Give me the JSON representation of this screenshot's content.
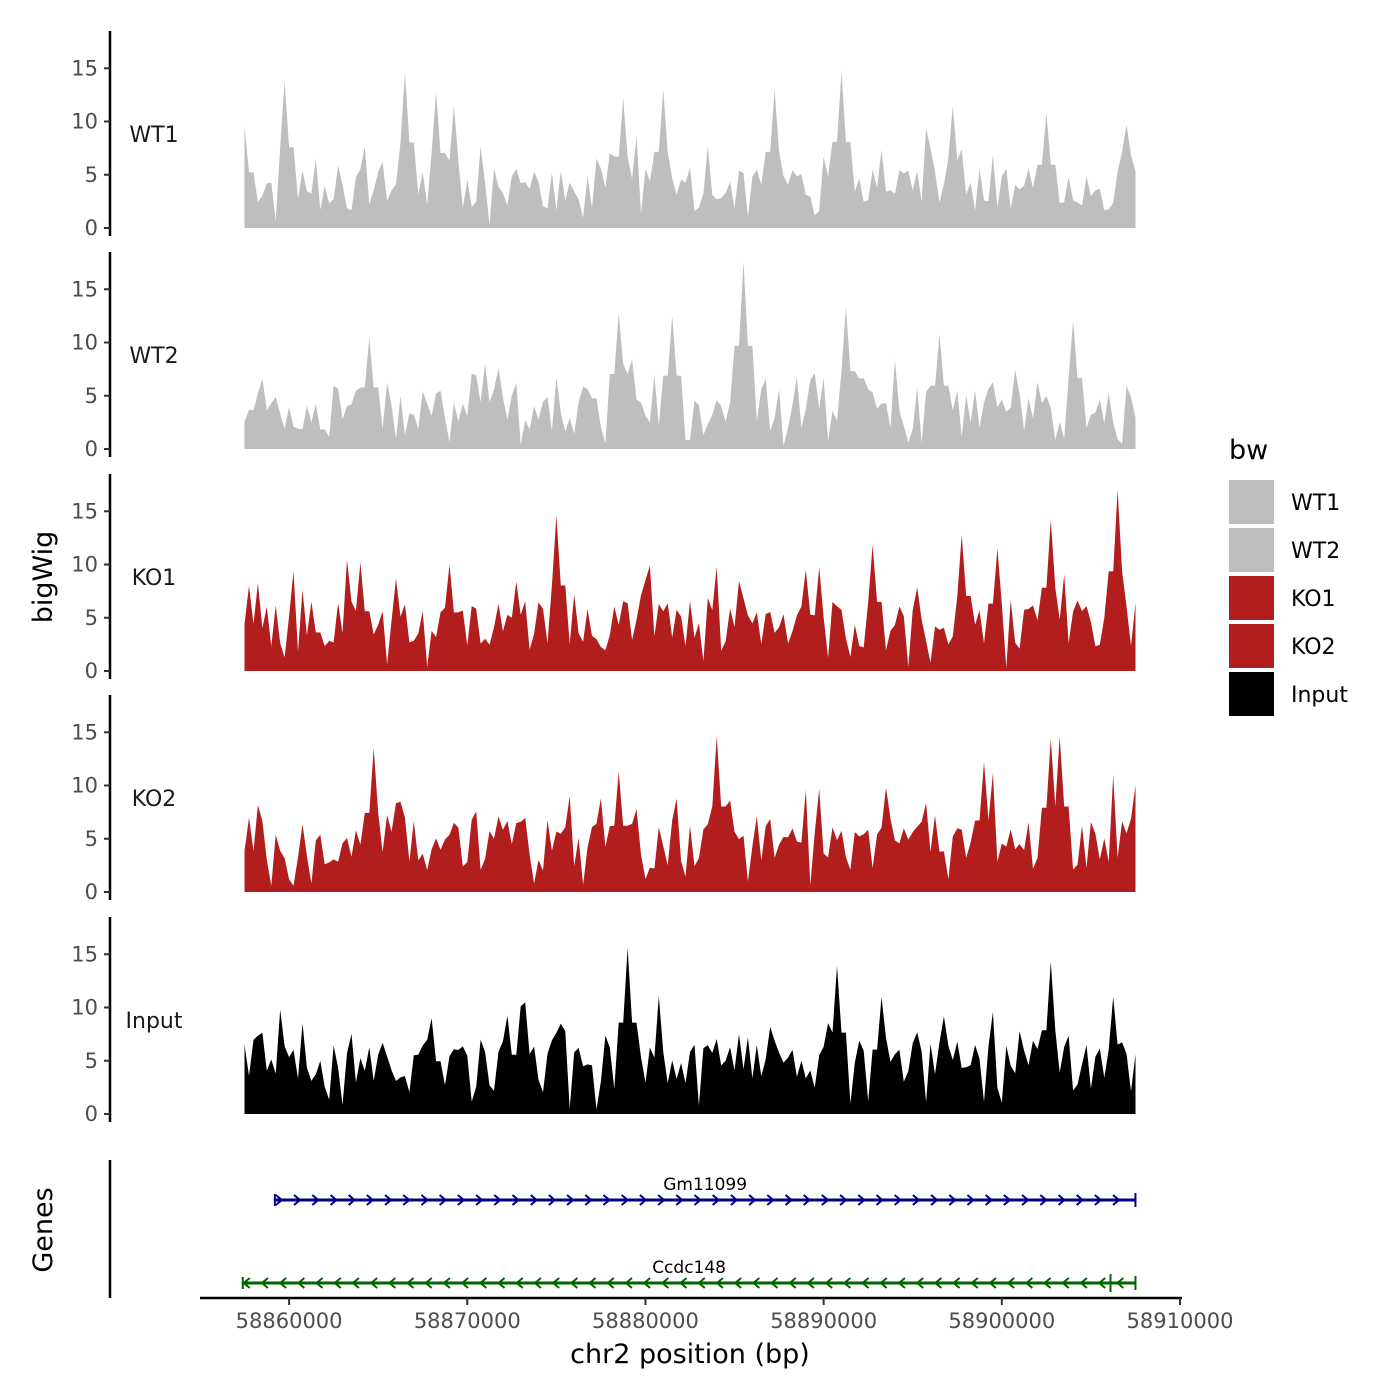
{
  "chart_data": {
    "type": "area",
    "description_free": true,
    "ylabel": "bigWig",
    "xlabel": "chr2 position (bp)",
    "xlim": [
      58855000,
      58910000
    ],
    "ylim": [
      0,
      18.5
    ],
    "y_ticks": [
      0,
      5,
      10,
      15
    ],
    "x_ticks": [
      58860000,
      58870000,
      58880000,
      58890000,
      58900000,
      58910000
    ],
    "x_tick_labels": [
      "58860000",
      "58870000",
      "58880000",
      "58890000",
      "58900000",
      "58910000"
    ],
    "data_range": [
      58857500,
      58907500
    ],
    "bin_size": 250,
    "series": [
      {
        "name": "WT1",
        "label": "WT1",
        "color": "#bebebe",
        "mean": 4.5,
        "seed": 11,
        "peaks": [
          [
            58857600,
            9.5
          ],
          [
            58859800,
            13.8
          ],
          [
            58866600,
            14.6
          ],
          [
            58868300,
            12.8
          ],
          [
            58869200,
            11.5
          ],
          [
            58878700,
            12.2
          ],
          [
            58880900,
            13.0
          ],
          [
            58891000,
            14.7
          ],
          [
            58887200,
            13.0
          ],
          [
            58897300,
            11.5
          ],
          [
            58902500,
            10.8
          ],
          [
            58907000,
            9.7
          ]
        ]
      },
      {
        "name": "WT2",
        "label": "WT2",
        "color": "#bebebe",
        "mean": 4.5,
        "seed": 23,
        "peaks": [
          [
            58885500,
            17.6
          ],
          [
            58881500,
            12.5
          ],
          [
            58878500,
            12.8
          ],
          [
            58891300,
            13.3
          ],
          [
            58904100,
            12.1
          ],
          [
            58896500,
            10.8
          ],
          [
            58871000,
            8.0
          ],
          [
            58864500,
            10.5
          ],
          [
            58858400,
            6.6
          ]
        ]
      },
      {
        "name": "KO1",
        "label": "KO1",
        "color": "#b21e1e",
        "mean": 5.3,
        "seed": 37,
        "peaks": [
          [
            58875100,
            14.6
          ],
          [
            58906400,
            17.0
          ],
          [
            58902700,
            14.2
          ],
          [
            58892800,
            11.8
          ],
          [
            58897800,
            12.8
          ],
          [
            58899700,
            11.5
          ],
          [
            58857800,
            8.0
          ],
          [
            58864000,
            10.2
          ],
          [
            58869000,
            10.0
          ],
          [
            58889000,
            9.5
          ]
        ]
      },
      {
        "name": "KO2",
        "label": "KO2",
        "color": "#b21e1e",
        "mean": 5.6,
        "seed": 53,
        "peaks": [
          [
            58864700,
            13.5
          ],
          [
            58884100,
            14.6
          ],
          [
            58902700,
            14.4
          ],
          [
            58903300,
            14.6
          ],
          [
            58878600,
            11.3
          ],
          [
            58893400,
            9.8
          ],
          [
            58899000,
            12.2
          ],
          [
            58907500,
            10.0
          ],
          [
            58857700,
            7.0
          ]
        ]
      },
      {
        "name": "Input",
        "label": "Input",
        "color": "#000000",
        "mean": 5.8,
        "seed": 71,
        "peaks": [
          [
            58879000,
            15.6
          ],
          [
            58890800,
            13.9
          ],
          [
            58902700,
            14.3
          ],
          [
            58873000,
            10.1
          ],
          [
            58893200,
            11.0
          ],
          [
            58906300,
            11.0
          ],
          [
            58857600,
            6.5
          ],
          [
            58868000,
            9.0
          ]
        ]
      }
    ],
    "legend": {
      "title": "bw",
      "placement": "right",
      "entries": [
        {
          "label": "WT1",
          "color": "#bebebe"
        },
        {
          "label": "WT2",
          "color": "#bebebe"
        },
        {
          "label": "KO1",
          "color": "#b21e1e"
        },
        {
          "label": "KO2",
          "color": "#b21e1e"
        },
        {
          "label": "Input",
          "color": "#000000"
        }
      ]
    },
    "genes_track": {
      "title": "Genes",
      "genes": [
        {
          "name": "Gm11099",
          "start": 58859200,
          "end": 58907500,
          "strand": "+",
          "color": "#00008b"
        },
        {
          "name": "Ccdc148",
          "start": 58857400,
          "end": 58907500,
          "strand": "-",
          "color": "#006400",
          "tick": 58906100
        }
      ]
    }
  }
}
